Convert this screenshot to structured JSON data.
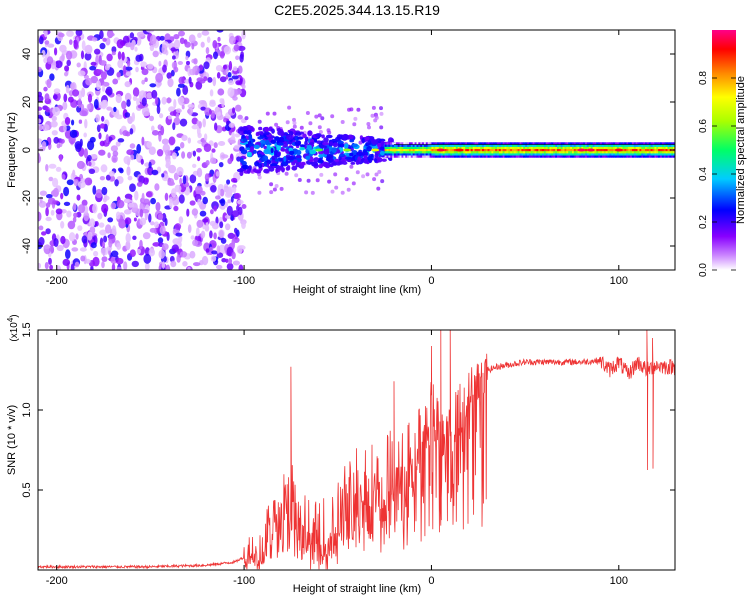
{
  "figure_title": "C2E5.2025.344.13.15.R19",
  "chart_data": [
    {
      "type": "heatmap",
      "name": "spectrogram",
      "xlabel": "Height of straight line (km)",
      "ylabel": "Frequency (Hz)",
      "xlim": [
        -210,
        130
      ],
      "ylim": [
        -50,
        50
      ],
      "xticks": [
        -200,
        -100,
        0,
        100
      ],
      "xtick_labels": [
        "-200",
        "-100",
        "0",
        "100"
      ],
      "yticks": [
        -40,
        -20,
        0,
        20,
        40
      ],
      "ytick_labels": [
        "-40",
        "-20",
        "0",
        "20",
        "40"
      ],
      "colorbar": {
        "label": "Normalized spectral amplitude",
        "range": [
          0,
          1
        ],
        "ticks": [
          0.0,
          0.2,
          0.4,
          0.6,
          0.8
        ],
        "tick_labels": [
          "0.0",
          "0.2",
          "0.4",
          "0.6",
          "0.8"
        ],
        "colors": [
          "#ffffff",
          "#8800ff",
          "#0000ff",
          "#00ffff",
          "#00ff00",
          "#ffff00",
          "#ff8800",
          "#ff0000",
          "#ff0088"
        ]
      },
      "regions": [
        {
          "x_range": [
            -210,
            -102
          ],
          "freq_range": [
            -50,
            50
          ],
          "amplitude": "low (0.05-0.25), broadband noise"
        },
        {
          "x_range": [
            -102,
            -20
          ],
          "freq_range": [
            -10,
            10
          ],
          "amplitude": "medium (0.2-0.45)"
        },
        {
          "x_range": [
            -20,
            130
          ],
          "freq_range": [
            -3,
            3
          ],
          "amplitude": "high (0.5-0.95) narrow band"
        }
      ]
    },
    {
      "type": "line",
      "name": "snr",
      "xlabel": "Height of straight line (km)",
      "ylabel": "SNR (10 * v/v)",
      "scale_label": "(x10",
      "scale_exp": "4",
      "scale_close": ")",
      "xlim": [
        -210,
        130
      ],
      "ylim": [
        0,
        1.5
      ],
      "xticks": [
        -200,
        -100,
        0,
        100
      ],
      "xtick_labels": [
        "-200",
        "-100",
        "0",
        "100"
      ],
      "yticks": [
        0.5,
        1.0,
        1.5
      ],
      "ytick_labels": [
        "0.5",
        "1.0",
        "1.5"
      ],
      "series": [
        {
          "name": "SNR",
          "color": "#ee3333",
          "x": [
            -210,
            -180,
            -150,
            -120,
            -105,
            -100,
            -90,
            -85,
            -80,
            -75,
            -70,
            -65,
            -60,
            -55,
            -50,
            -45,
            -40,
            -35,
            -30,
            -25,
            -20,
            -15,
            -10,
            -5,
            0,
            5,
            10,
            15,
            20,
            25,
            30,
            35,
            40,
            50,
            60,
            70,
            80,
            90,
            95,
            100,
            105,
            110,
            115,
            120,
            125,
            130
          ],
          "y": [
            0.02,
            0.02,
            0.02,
            0.03,
            0.05,
            0.08,
            0.15,
            0.3,
            0.45,
            0.5,
            0.3,
            0.2,
            0.15,
            0.2,
            0.3,
            0.4,
            0.5,
            0.55,
            0.5,
            0.55,
            0.6,
            0.6,
            0.7,
            0.9,
            0.95,
            0.9,
            0.85,
            1.0,
            1.1,
            1.2,
            1.25,
            1.27,
            1.28,
            1.3,
            1.3,
            1.3,
            1.3,
            1.31,
            1.25,
            1.3,
            1.22,
            1.3,
            1.25,
            1.28,
            1.27,
            1.27
          ]
        }
      ]
    }
  ]
}
